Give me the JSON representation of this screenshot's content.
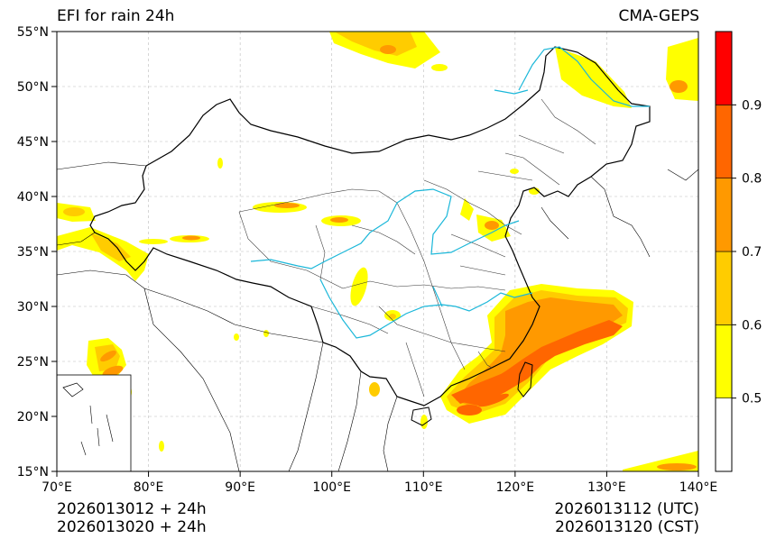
{
  "header": {
    "title": "EFI for rain 24h",
    "model": "CMA-GEPS"
  },
  "footer": {
    "init_utc": "2026013012 + 24h",
    "init_cst": "2026013020 + 24h",
    "valid_utc": "2026013112 (UTC)",
    "valid_cst": "2026013120 (CST)"
  },
  "map": {
    "lon_range": [
      70,
      140
    ],
    "lat_range": [
      15,
      55
    ],
    "lon_ticks": [
      "70°E",
      "80°E",
      "90°E",
      "100°E",
      "110°E",
      "120°E",
      "130°E",
      "140°E"
    ],
    "lat_ticks": [
      "15°N",
      "20°N",
      "25°N",
      "30°N",
      "35°N",
      "40°N",
      "45°N",
      "50°N",
      "55°N"
    ],
    "gridlines": true
  },
  "colorbar": {
    "levels": [
      0.4,
      0.5,
      0.6,
      0.7,
      0.8,
      0.9,
      1.0
    ],
    "tick_labels": [
      "0.5",
      "0.6",
      "0.7",
      "0.8",
      "0.9"
    ],
    "colors": [
      "#ffffff",
      "#ffff00",
      "#ffcc00",
      "#ff9900",
      "#ff6600",
      "#ff0000"
    ]
  },
  "colors": {
    "border": "#000000",
    "province": "#333333",
    "river": "#1ab7d9"
  }
}
